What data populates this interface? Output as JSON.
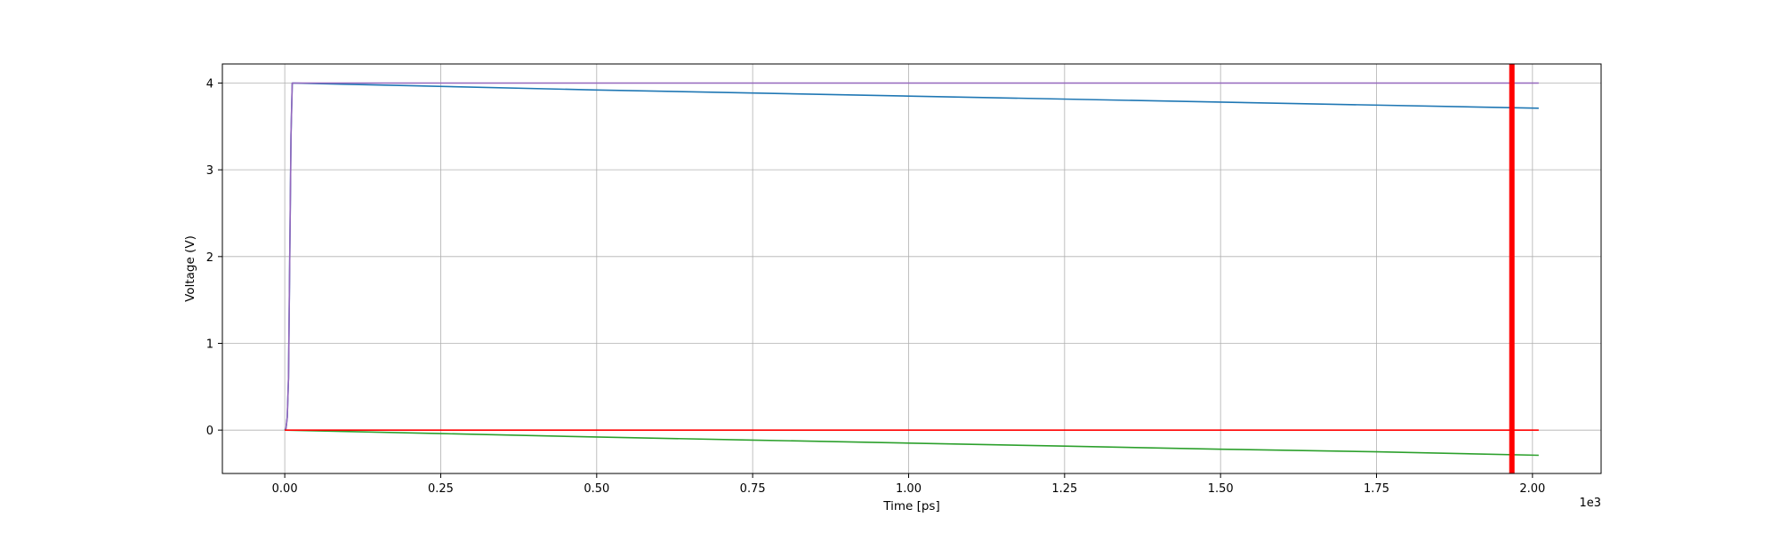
{
  "chart_data": {
    "type": "line",
    "title": "",
    "xlabel": "Time [ps]",
    "ylabel": "Voltage (V)",
    "x_offset_text": "1e3",
    "xlim": [
      -100,
      2110
    ],
    "ylim": [
      -0.5,
      4.22
    ],
    "x_ticks": [
      0,
      250,
      500,
      750,
      1000,
      1250,
      1500,
      1750,
      2000
    ],
    "x_tick_labels": [
      "0.00",
      "0.25",
      "0.50",
      "0.75",
      "1.00",
      "1.25",
      "1.50",
      "1.75",
      "2.00"
    ],
    "y_ticks": [
      0,
      1,
      2,
      3,
      4
    ],
    "y_tick_labels": [
      "0",
      "1",
      "2",
      "3",
      "4"
    ],
    "grid": true,
    "legend": false,
    "series": [
      {
        "color": "#1f77b4",
        "points": [
          [
            0,
            0
          ],
          [
            2,
            0.02
          ],
          [
            4,
            0.15
          ],
          [
            6,
            0.6
          ],
          [
            8,
            2.0
          ],
          [
            10,
            3.4
          ],
          [
            12,
            4.0
          ],
          [
            200,
            3.97
          ],
          [
            500,
            3.92
          ],
          [
            1000,
            3.85
          ],
          [
            1500,
            3.78
          ],
          [
            2010,
            3.71
          ]
        ]
      },
      {
        "color": "#9467bd",
        "points": [
          [
            0,
            0
          ],
          [
            2,
            0.02
          ],
          [
            4,
            0.15
          ],
          [
            6,
            0.6
          ],
          [
            8,
            2.0
          ],
          [
            10,
            3.4
          ],
          [
            12,
            4.0
          ],
          [
            500,
            4.0
          ],
          [
            1000,
            4.0
          ],
          [
            1500,
            4.0
          ],
          [
            2010,
            4.0
          ]
        ]
      },
      {
        "color": "#2ca02c",
        "points": [
          [
            0,
            0
          ],
          [
            250,
            -0.04
          ],
          [
            500,
            -0.08
          ],
          [
            750,
            -0.115
          ],
          [
            1000,
            -0.15
          ],
          [
            1250,
            -0.185
          ],
          [
            1500,
            -0.22
          ],
          [
            1750,
            -0.25
          ],
          [
            2010,
            -0.29
          ]
        ]
      },
      {
        "color": "#ff0000",
        "points": [
          [
            0,
            0
          ],
          [
            500,
            0
          ],
          [
            1000,
            0
          ],
          [
            1500,
            0
          ],
          [
            2010,
            0
          ]
        ]
      }
    ],
    "vertical_markers": [
      {
        "x": 1967,
        "color": "#ff0000"
      }
    ]
  }
}
